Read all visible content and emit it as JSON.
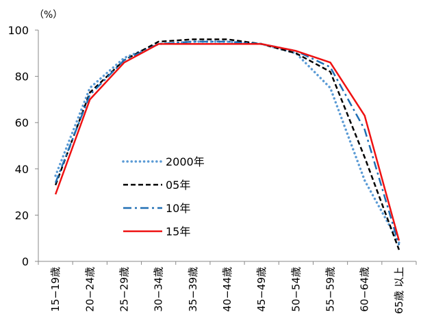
{
  "chart_data": {
    "type": "line",
    "unit_label": "（%）",
    "ylim": [
      0,
      100
    ],
    "y_ticks": [
      0,
      20,
      40,
      60,
      80,
      100
    ],
    "categories": [
      "15−19歳",
      "20−24歳",
      "25−29歳",
      "30−34歳",
      "35−39歳",
      "40−44歳",
      "45−49歳",
      "50−54歳",
      "55−59歳",
      "60−64歳",
      "65歳 以上"
    ],
    "legend_position": "center-left",
    "grid": false,
    "series": [
      {
        "name": "2000年",
        "color": "#5b9bd5",
        "style": "dotted",
        "values": [
          37,
          75,
          88,
          94,
          95,
          95,
          94,
          90,
          75,
          35,
          8
        ]
      },
      {
        "name": "05年",
        "color": "#000000",
        "style": "dashed",
        "values": [
          33,
          73,
          87,
          95,
          96,
          96,
          94,
          90,
          82,
          45,
          5
        ]
      },
      {
        "name": "10年",
        "color": "#1f6fb4",
        "style": "dashdot",
        "values": [
          34,
          72,
          87,
          94,
          95,
          95,
          94,
          91,
          84,
          57,
          7
        ]
      },
      {
        "name": "15年",
        "color": "#ee1111",
        "style": "solid",
        "values": [
          29,
          70,
          86,
          94,
          94,
          94,
          94,
          91,
          86,
          63,
          9
        ]
      }
    ]
  }
}
